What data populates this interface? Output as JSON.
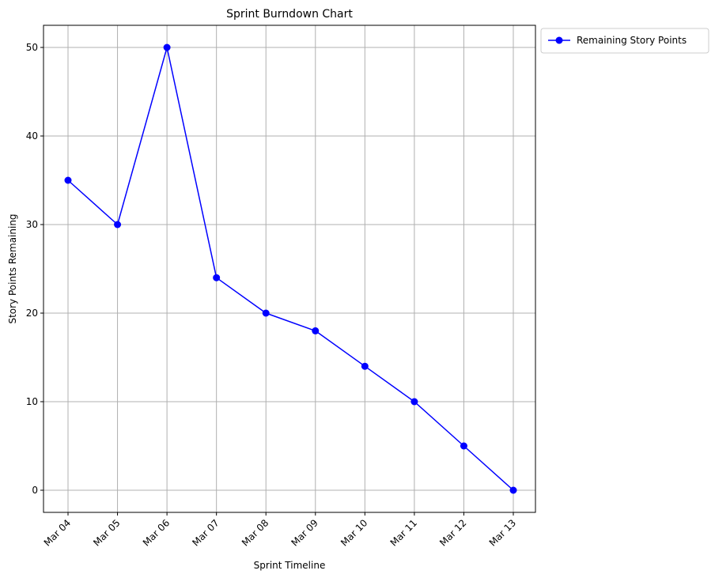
{
  "chart_data": {
    "type": "line",
    "title": "Sprint Burndown Chart",
    "xlabel": "Sprint Timeline",
    "ylabel": "Story Points Remaining",
    "categories": [
      "Mar 04",
      "Mar 05",
      "Mar 06",
      "Mar 07",
      "Mar 08",
      "Mar 09",
      "Mar 10",
      "Mar 11",
      "Mar 12",
      "Mar 13"
    ],
    "series": [
      {
        "name": "Remaining Story Points",
        "values": [
          35,
          30,
          50,
          24,
          20,
          18,
          14,
          10,
          5,
          0
        ],
        "color": "#0000ff",
        "marker": "circle"
      }
    ],
    "ylim": [
      -2.5,
      52.5
    ],
    "yticks": [
      0,
      10,
      20,
      30,
      40,
      50
    ],
    "grid": true,
    "legend_position": "outside-top-right",
    "xtick_rotation": -45
  }
}
